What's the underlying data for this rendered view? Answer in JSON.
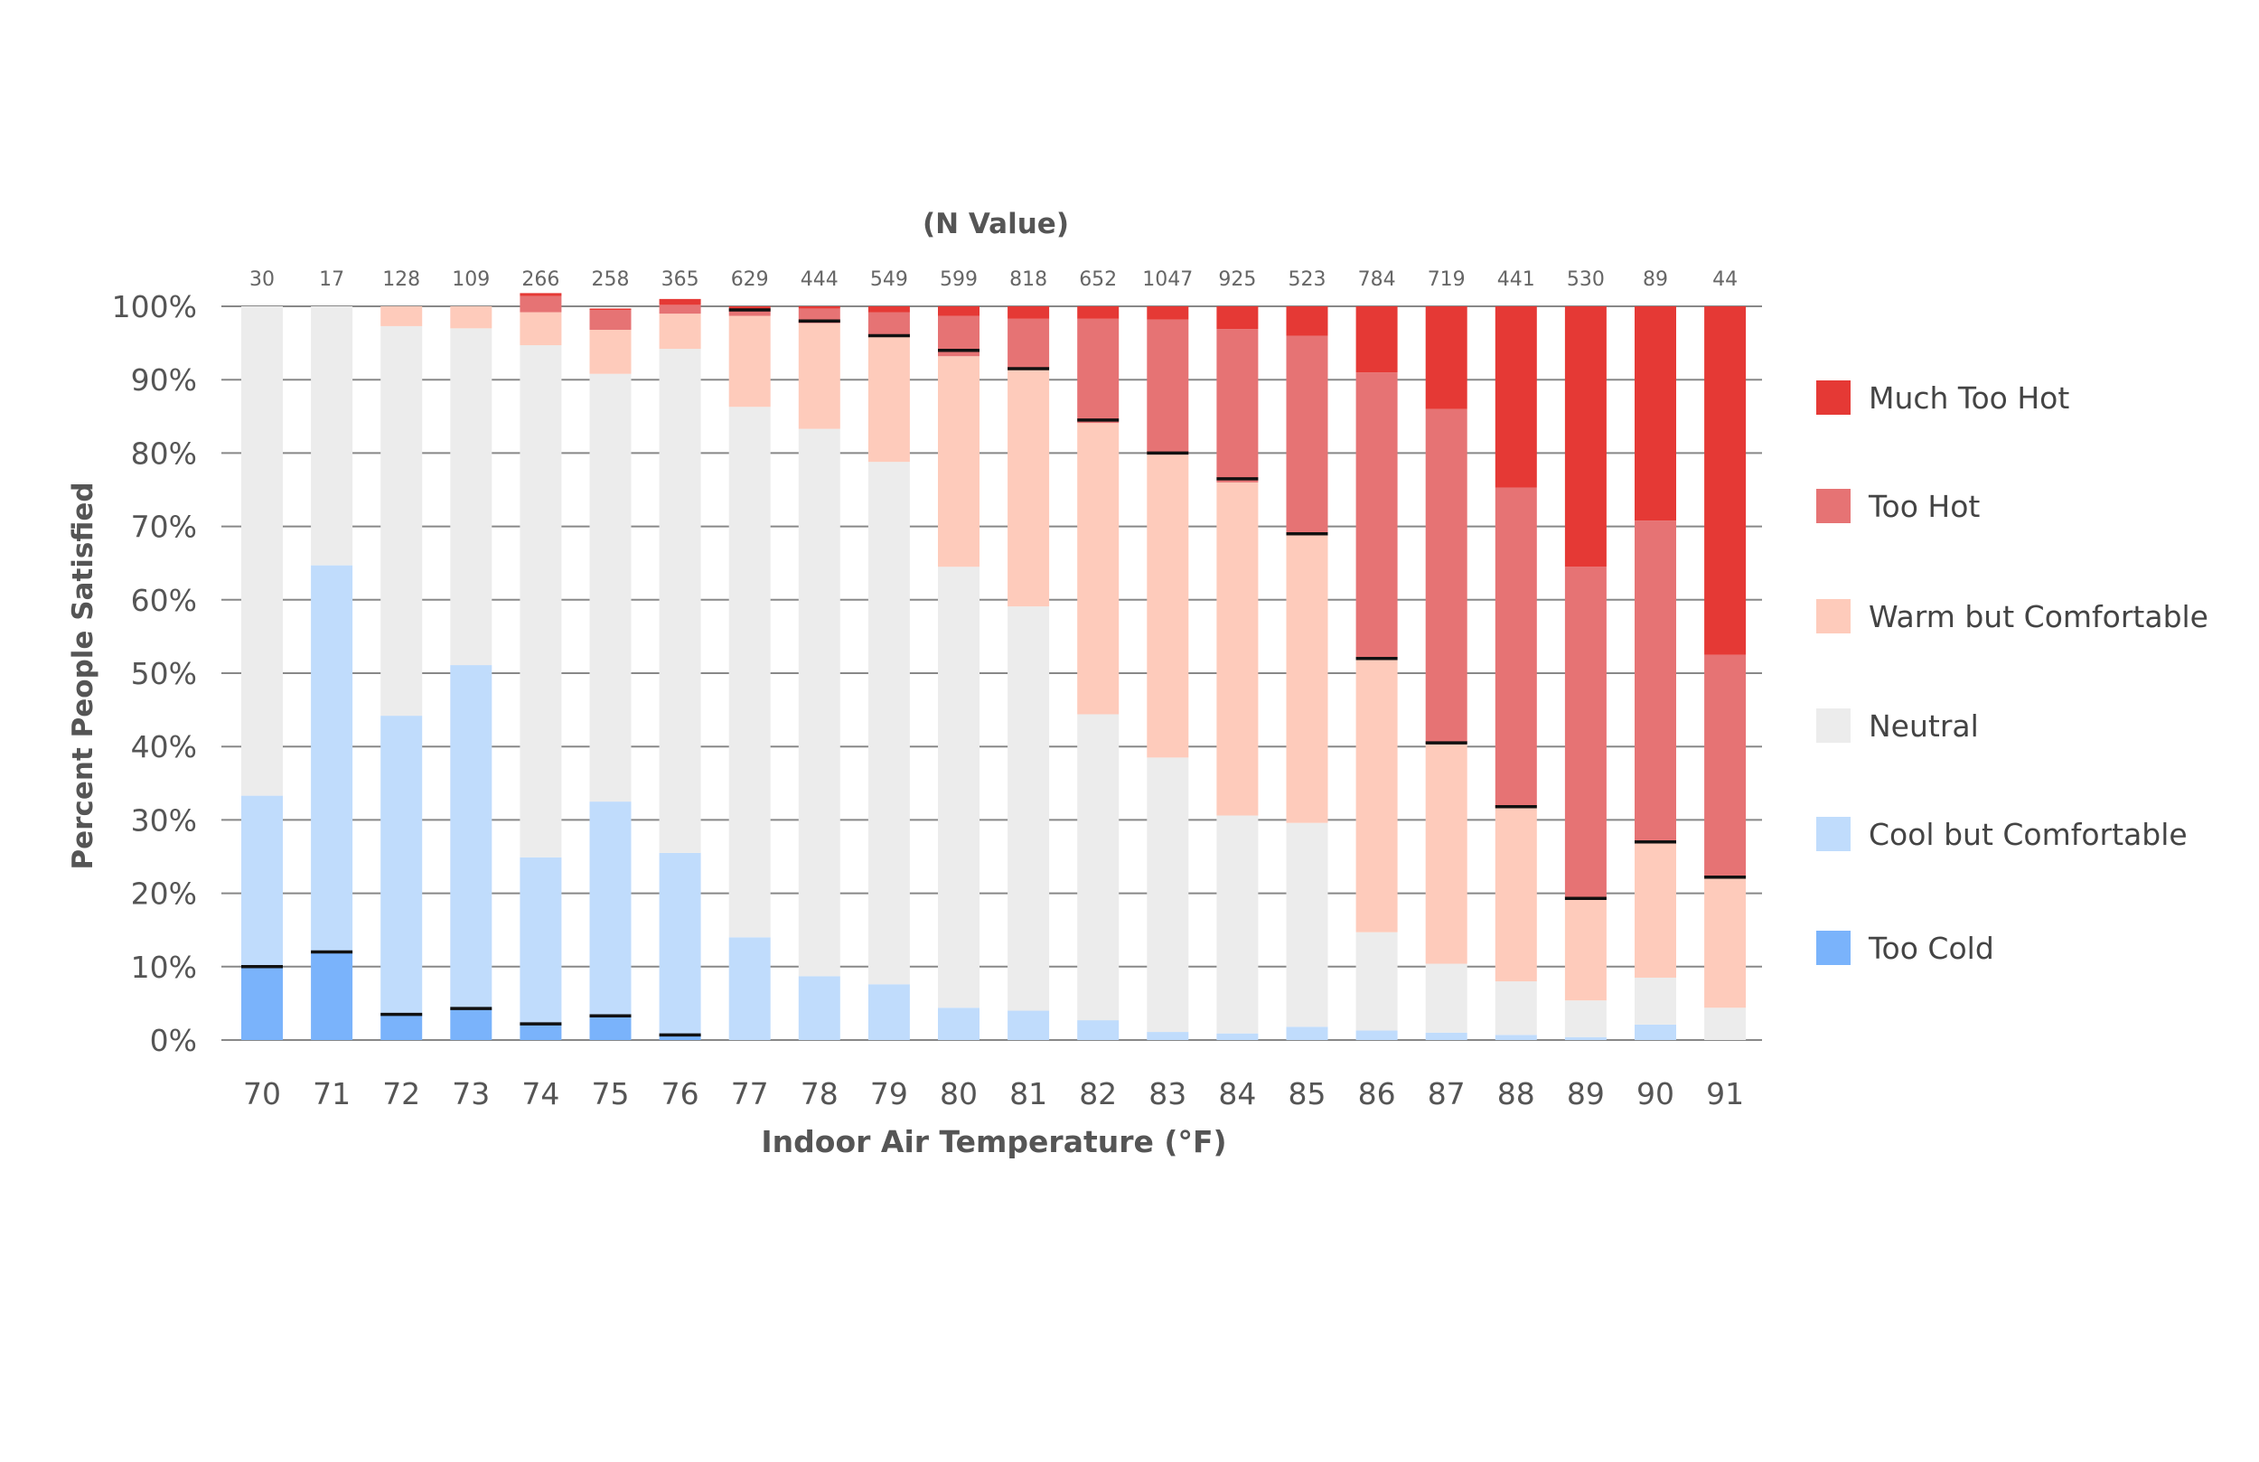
{
  "chart_data": {
    "type": "bar",
    "stacked": true,
    "title": "",
    "n_title": "(N Value)",
    "xlabel": "Indoor Air Temperature (°F)",
    "ylabel": "Percent People Satisfied",
    "ylim": [
      0,
      100
    ],
    "y_ticks": [
      "0%",
      "10%",
      "20%",
      "30%",
      "40%",
      "50%",
      "60%",
      "70%",
      "80%",
      "90%",
      "100%"
    ],
    "grid": true,
    "legend_position": "right",
    "categories": [
      "70",
      "71",
      "72",
      "73",
      "74",
      "75",
      "76",
      "77",
      "78",
      "79",
      "80",
      "81",
      "82",
      "83",
      "84",
      "85",
      "86",
      "87",
      "88",
      "89",
      "90",
      "91"
    ],
    "n_values": [
      "30",
      "17",
      "128",
      "109",
      "266",
      "258",
      "365",
      "629",
      "444",
      "549",
      "599",
      "818",
      "652",
      "1047",
      "925",
      "523",
      "784",
      "719",
      "441",
      "530",
      "89",
      "44"
    ],
    "series": [
      {
        "name": "Too Cold",
        "color": "#7ab3fb",
        "values": [
          10,
          12,
          3.5,
          4.3,
          2.2,
          3.3,
          0.7,
          0,
          0,
          0,
          0,
          0,
          0,
          0,
          0,
          0,
          0,
          0,
          0,
          0,
          0,
          0
        ]
      },
      {
        "name": "Cool but Comfortable",
        "color": "#c0dcfc",
        "values": [
          23.3,
          52.7,
          40.7,
          46.8,
          22.7,
          29.2,
          24.8,
          14,
          8.7,
          7.6,
          4.4,
          4,
          2.7,
          1.1,
          0.9,
          1.8,
          1.3,
          1.0,
          0.7,
          0.4,
          2.1,
          0
        ]
      },
      {
        "name": "Neutral",
        "color": "#ececec",
        "values": [
          66.7,
          35.3,
          53.1,
          45.9,
          69.8,
          58.3,
          68.7,
          72.3,
          74.6,
          71.2,
          60.1,
          55.1,
          41.7,
          37.4,
          29.7,
          27.8,
          13.4,
          9.4,
          7.3,
          5.0,
          6.4,
          4.4
        ]
      },
      {
        "name": "Warm but Comfortable",
        "color": "#fecbbb",
        "values": [
          0,
          0,
          2.7,
          3.0,
          4.5,
          6.0,
          4.8,
          12.4,
          14.4,
          17.0,
          28.7,
          32.4,
          39.7,
          41.5,
          45.4,
          39.4,
          37.3,
          30.0,
          23.7,
          13.9,
          18.3,
          17.8
        ]
      },
      {
        "name": "Too Hot",
        "color": "#e67374",
        "values": [
          0,
          0,
          0,
          0,
          2.2,
          2.7,
          1.2,
          0.8,
          2.0,
          3.4,
          5.5,
          6.8,
          14.2,
          18.2,
          20.9,
          27.0,
          39.0,
          45.6,
          43.6,
          45.2,
          44.0,
          30.3
        ]
      },
      {
        "name": "Much Too Hot",
        "color": "#e53935",
        "values": [
          0,
          0,
          0,
          0,
          0.4,
          0.2,
          0.8,
          0.5,
          0.3,
          0.8,
          1.3,
          1.7,
          1.7,
          1.8,
          3.1,
          4.0,
          9.0,
          14.0,
          24.7,
          35.5,
          29.2,
          47.5
        ]
      }
    ],
    "satisfaction_line": [
      10,
      12,
      3.5,
      4.3,
      2.2,
      3.3,
      0.7,
      99.5,
      98.0,
      96.0,
      94.0,
      91.5,
      84.5,
      80.0,
      76.5,
      69.0,
      52.0,
      40.5,
      31.8,
      19.3,
      27.0,
      22.2
    ]
  }
}
